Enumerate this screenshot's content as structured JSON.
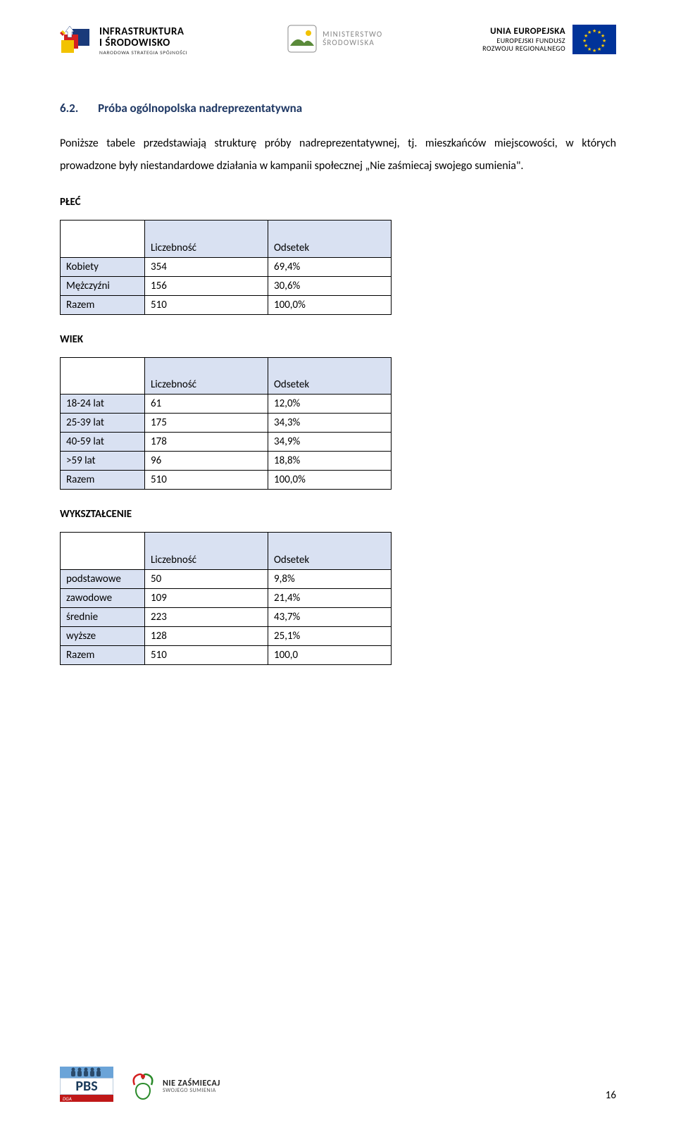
{
  "header": {
    "left": {
      "line1": "INFRASTRUKTURA",
      "line2": "I ŚRODOWISKO",
      "line3": "NARODOWA STRATEGIA SPÓJNOŚCI"
    },
    "center": {
      "line1": "MINISTERSTWO",
      "line2": "ŚRODOWISKA"
    },
    "right": {
      "line1": "UNIA EUROPEJSKA",
      "line2": "EUROPEJSKI FUNDUSZ",
      "line3": "ROZWOJU REGIONALNEGO"
    }
  },
  "section": {
    "number": "6.2.",
    "title": "Próba ogólnopolska nadreprezentatywna"
  },
  "paragraph": "Poniższe tabele przedstawiają strukturę próby nadreprezentatywnej, tj. mieszkańców miejscowości, w których prowadzone były niestandardowe działania w kampanii społecznej „Nie zaśmiecaj swojego sumienia\".",
  "tables": {
    "headers": {
      "count": "Liczebność",
      "pct": "Odsetek"
    },
    "plec": {
      "title": "PŁEĆ",
      "rows": [
        {
          "label": "Kobiety",
          "count": "354",
          "pct": "69,4%"
        },
        {
          "label": "Mężczyźni",
          "count": "156",
          "pct": "30,6%"
        },
        {
          "label": "Razem",
          "count": "510",
          "pct": "100,0%"
        }
      ]
    },
    "wiek": {
      "title": "WIEK",
      "rows": [
        {
          "label": "18-24 lat",
          "count": "61",
          "pct": "12,0%"
        },
        {
          "label": "25-39 lat",
          "count": "175",
          "pct": "34,3%"
        },
        {
          "label": "40-59 lat",
          "count": "178",
          "pct": "34,9%"
        },
        {
          "label": ">59 lat",
          "count": "96",
          "pct": "18,8%"
        },
        {
          "label": "Razem",
          "count": "510",
          "pct": "100,0%"
        }
      ]
    },
    "wyk": {
      "title": "WYKSZTAŁCENIE",
      "rows": [
        {
          "label": "podstawowe",
          "count": "50",
          "pct": "9,8%"
        },
        {
          "label": "zawodowe",
          "count": "109",
          "pct": "21,4%"
        },
        {
          "label": "średnie",
          "count": "223",
          "pct": "43,7%"
        },
        {
          "label": "wyższe",
          "count": "128",
          "pct": "25,1%"
        },
        {
          "label": "Razem",
          "count": "510",
          "pct": "100,0"
        }
      ]
    }
  },
  "footer": {
    "pbs": {
      "label": "PBS",
      "sub": "DGA"
    },
    "nz": {
      "line1": "NIE ZAŚMIECAJ",
      "line2": "SWOJEGO SUMIENIA"
    },
    "page": "16"
  },
  "colors": {
    "heading": "#1f3864",
    "table_header_bg": "#d9e1f2",
    "table_border": "#000000",
    "eu_blue": "#003399",
    "eu_gold": "#ffcc00"
  }
}
